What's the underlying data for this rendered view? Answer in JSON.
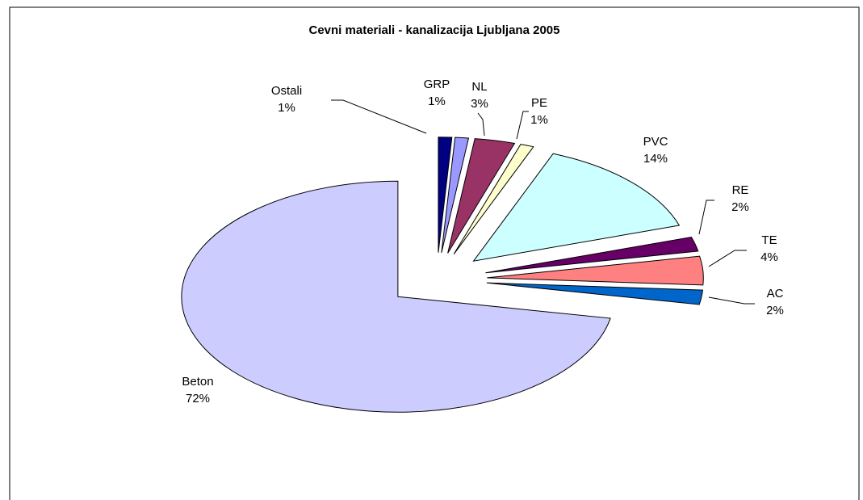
{
  "chart_data": {
    "type": "pie",
    "title": "Cevni materiali - kanalizacija Ljubljana 2005",
    "categories": [
      "Ostali",
      "GRP",
      "NL",
      "PE",
      "PVC",
      "RE",
      "TE",
      "AC",
      "Beton"
    ],
    "values": [
      1,
      1,
      3,
      1,
      14,
      2,
      4,
      2,
      72
    ],
    "value_labels": [
      "1%",
      "1%",
      "3%",
      "1%",
      "14%",
      "2%",
      "4%",
      "2%",
      "72%"
    ],
    "colors": [
      "#000080",
      "#9999ff",
      "#993366",
      "#ffffcc",
      "#ccffff",
      "#660066",
      "#ff8080",
      "#0066cc",
      "#ccccff"
    ],
    "exploded": true
  }
}
